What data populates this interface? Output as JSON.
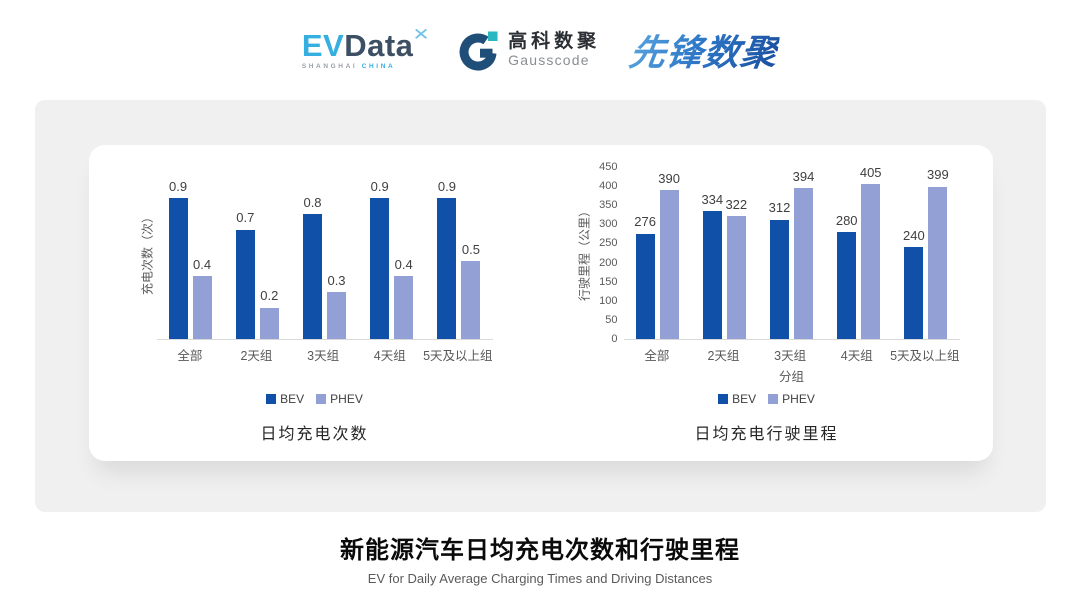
{
  "header": {
    "evdata": {
      "ev": "EV",
      "data": "Data",
      "star_icon": "✕",
      "sub1": "SHANGHAI",
      "sub2": "CHINA"
    },
    "gausscode": {
      "cn": "高科数聚",
      "en": "Gausscode",
      "icon_navy": "#1f4e79",
      "icon_teal": "#29b8c2"
    },
    "pioneer": {
      "text": "先锋数聚"
    }
  },
  "chart_data": [
    {
      "type": "bar",
      "title": "日均充电次数",
      "categories": [
        "全部",
        "2天组",
        "3天组",
        "4天组",
        "5天及以上组"
      ],
      "series": [
        {
          "name": "BEV",
          "values": [
            0.9,
            0.7,
            0.8,
            0.9,
            0.9
          ],
          "color": "#1150a8"
        },
        {
          "name": "PHEV",
          "values": [
            0.4,
            0.2,
            0.3,
            0.4,
            0.5
          ],
          "color": "#93a0d5"
        }
      ],
      "xlabel": "",
      "ylabel": "充电次数（次）",
      "ylim": [
        0,
        1.1
      ],
      "yticks": [],
      "grid": false,
      "legend_position": "bottom"
    },
    {
      "type": "bar",
      "title": "日均充电行驶里程",
      "categories": [
        "全部",
        "2天组",
        "3天组",
        "4天组",
        "5天及以上组"
      ],
      "series": [
        {
          "name": "BEV",
          "values": [
            276,
            334,
            312,
            280,
            240
          ],
          "color": "#1150a8"
        },
        {
          "name": "PHEV",
          "values": [
            390,
            322,
            394,
            405,
            399
          ],
          "color": "#93a0d5"
        }
      ],
      "xlabel": "分组",
      "ylabel": "行驶里程（公里）",
      "ylim": [
        0,
        450
      ],
      "yticks": [
        0,
        50,
        100,
        150,
        200,
        250,
        300,
        350,
        400,
        450
      ],
      "grid": false,
      "legend_position": "bottom"
    }
  ],
  "footer": {
    "title": "新能源汽车日均充电次数和行驶里程",
    "subtitle": "EV for Daily Average Charging Times and Driving Distances"
  }
}
